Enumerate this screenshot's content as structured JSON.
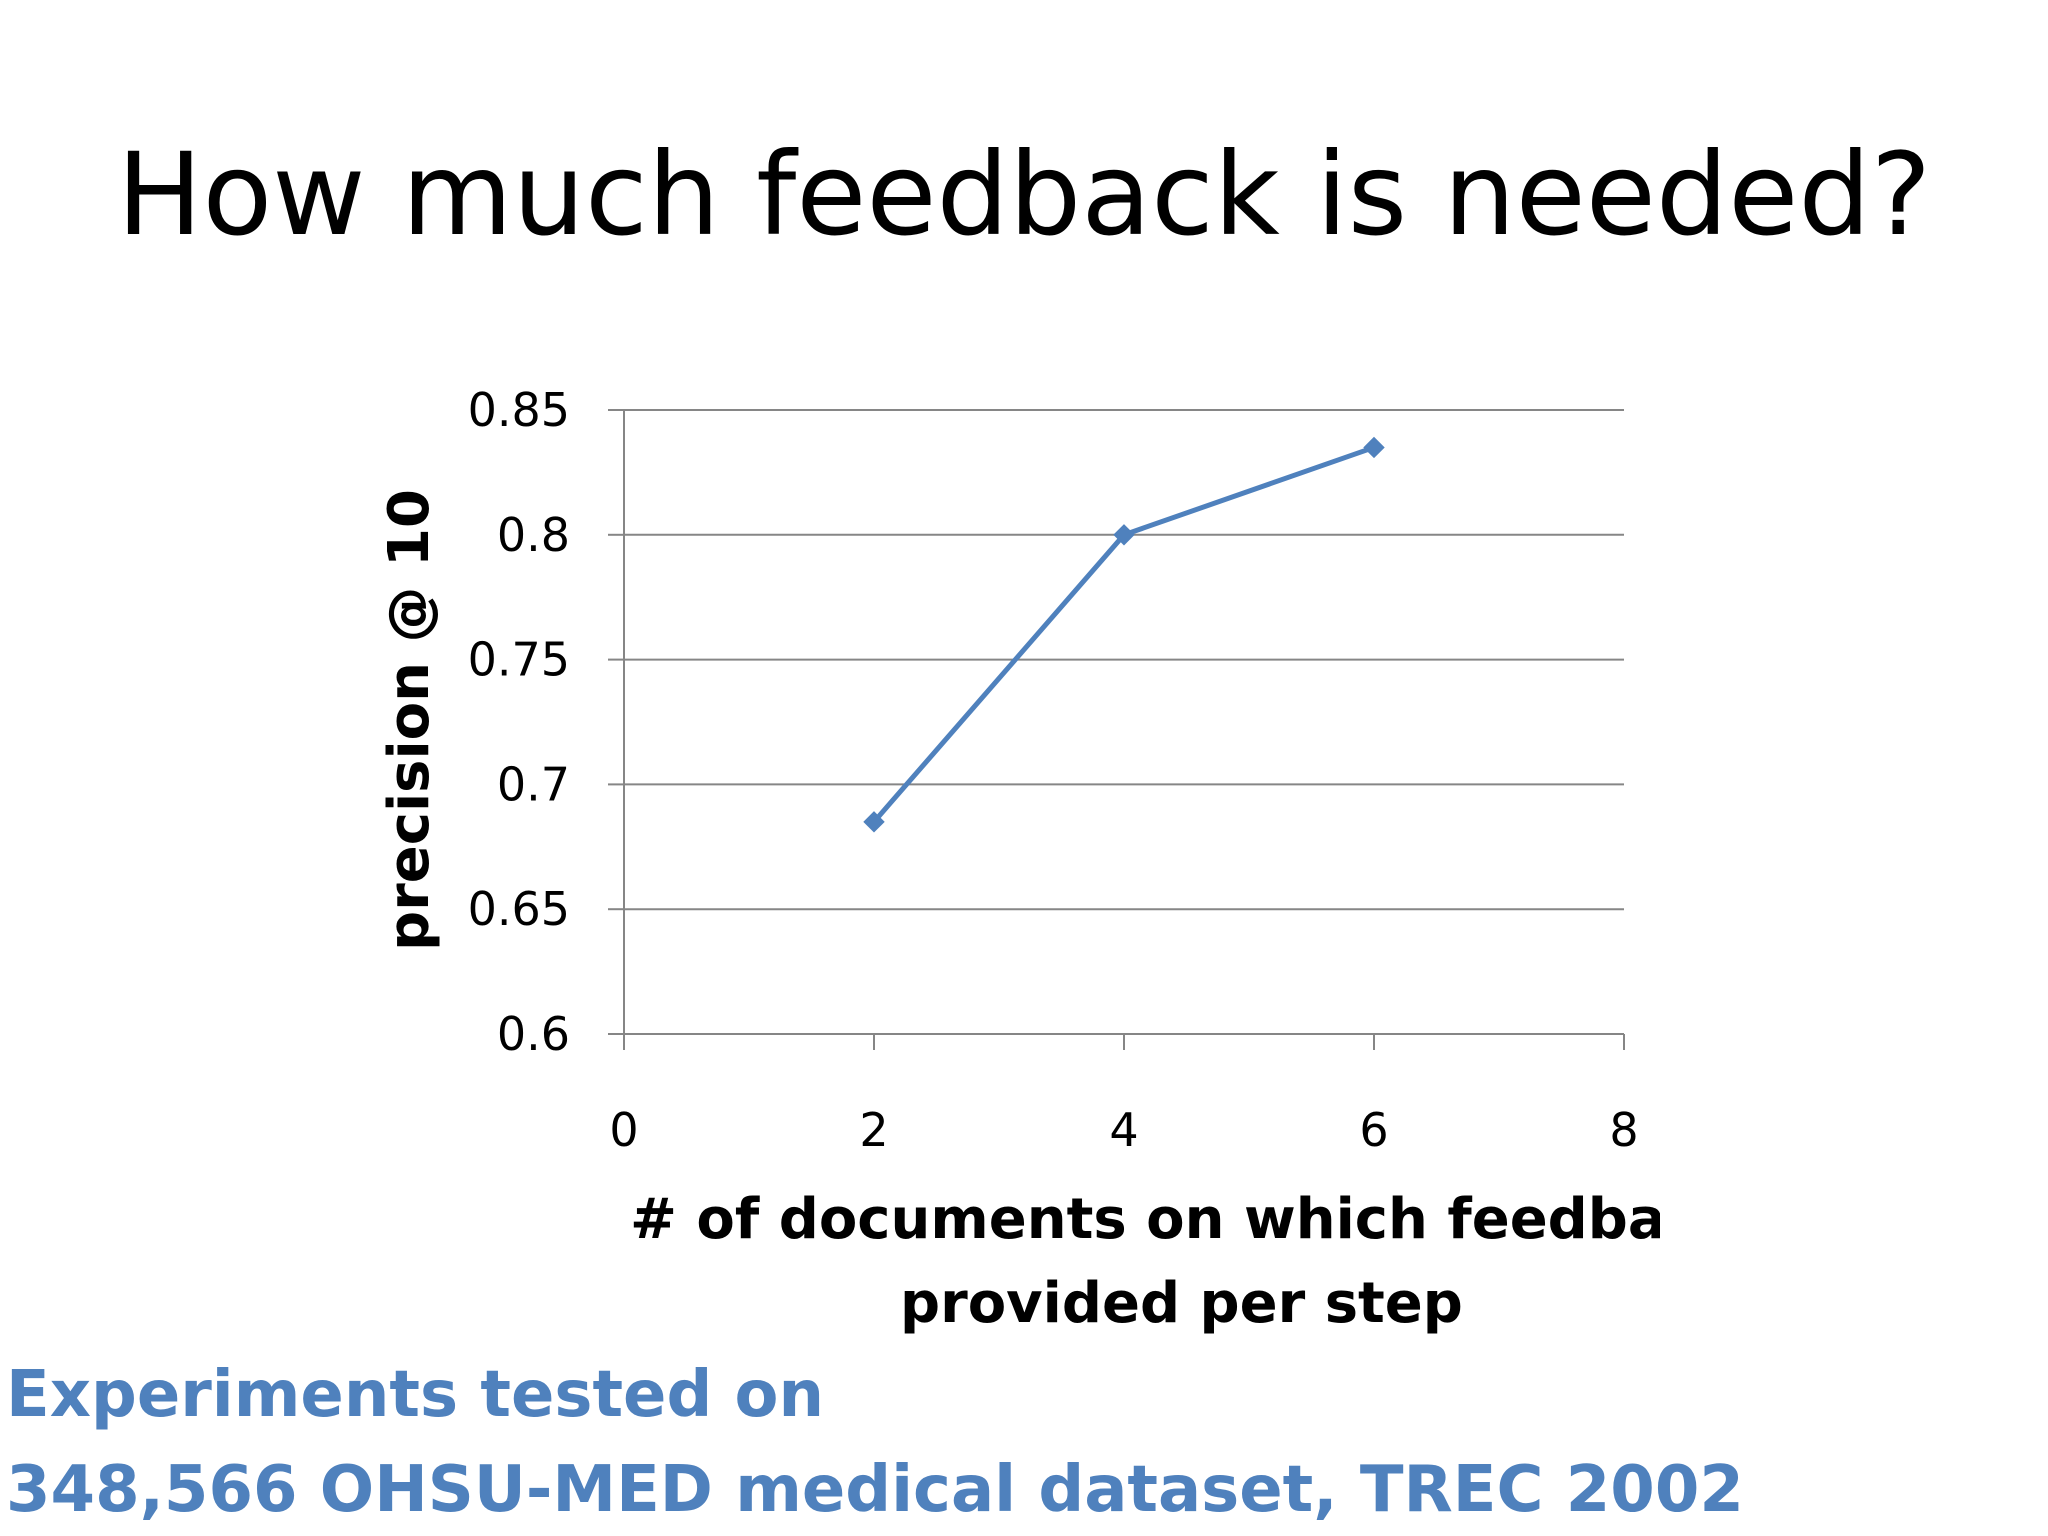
{
  "slide": {
    "title": "How much feedback is needed?",
    "footnote_line1": "Experiments tested on",
    "footnote_line2": "348,566 OHSU-MED medical dataset, TREC 2002"
  },
  "colors": {
    "series": "#4f81bd",
    "gridline": "#868686",
    "footnote": "#4f81bd",
    "text": "#000000"
  },
  "chart_data": {
    "type": "scatter",
    "subtype": "line-with-markers",
    "marker": "diamond",
    "title": "",
    "xlabel_line1": "# of documents on which feedback is",
    "xlabel_line2": "provided  per step",
    "ylabel": "precision @ 10",
    "xlim": [
      0,
      8
    ],
    "ylim": [
      0.6,
      0.85
    ],
    "xticks": [
      "0",
      "2",
      "4",
      "6",
      "8"
    ],
    "yticks": [
      "0.6",
      "0.65",
      "0.7",
      "0.75",
      "0.8",
      "0.85"
    ],
    "grid": "horizontal",
    "legend": "none",
    "series": [
      {
        "x": [
          2,
          4,
          6
        ],
        "y": [
          0.685,
          0.8,
          0.835
        ]
      }
    ]
  }
}
